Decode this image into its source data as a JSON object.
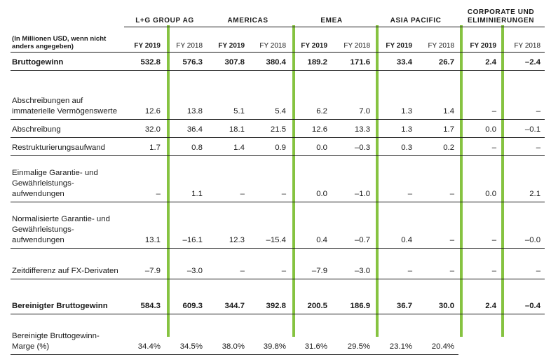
{
  "groups": [
    "L+G GROUP AG",
    "AMERICAS",
    "EMEA",
    "ASIA PACIFIC",
    "CORPORATE UND ELIMINIERUNGEN"
  ],
  "unit_note": "(In Millionen USD, wenn nicht anders angegeben)",
  "years": [
    "FY 2019",
    "FY 2018",
    "FY 2019",
    "FY 2018",
    "FY 2019",
    "FY 2018",
    "FY 2019",
    "FY 2018",
    "FY 2019",
    "FY 2018"
  ],
  "rows": [
    {
      "label": "Bruttogewinn",
      "bold": true,
      "values": [
        "532.8",
        "576.3",
        "307.8",
        "380.4",
        "189.2",
        "171.6",
        "33.4",
        "26.7",
        "2.4",
        "–2.4"
      ]
    },
    {
      "label": "Abschreibungen auf immaterielle Vermögenswerte",
      "values": [
        "12.6",
        "13.8",
        "5.1",
        "5.4",
        "6.2",
        "7.0",
        "1.3",
        "1.4",
        "–",
        "–"
      ]
    },
    {
      "label": "Abschreibung",
      "values": [
        "32.0",
        "36.4",
        "18.1",
        "21.5",
        "12.6",
        "13.3",
        "1.3",
        "1.7",
        "0.0",
        "–0.1"
      ]
    },
    {
      "label": "Restrukturierungsaufwand",
      "values": [
        "1.7",
        "0.8",
        "1.4",
        "0.9",
        "0.0",
        "–0.3",
        "0.3",
        "0.2",
        "–",
        "–"
      ]
    },
    {
      "label": "Einmalige Garantie- und Gewährleistungs-aufwendungen",
      "values": [
        "–",
        "1.1",
        "–",
        "–",
        "0.0",
        "–1.0",
        "–",
        "–",
        "0.0",
        "2.1"
      ]
    },
    {
      "label": "Normalisierte Garantie- und Gewährleistungs-aufwendungen",
      "values": [
        "13.1",
        "–16.1",
        "12.3",
        "–15.4",
        "0.4",
        "–0.7",
        "0.4",
        "–",
        "–",
        "–0.0"
      ]
    },
    {
      "label": "Zeitdifferenz auf FX-Derivaten",
      "values": [
        "–7.9",
        "–3.0",
        "–",
        "–",
        "–7.9",
        "–3.0",
        "–",
        "–",
        "–",
        "–"
      ]
    },
    {
      "label": "Bereinigter Bruttogewinn",
      "bold": true,
      "values": [
        "584.3",
        "609.3",
        "344.7",
        "392.8",
        "200.5",
        "186.9",
        "36.7",
        "30.0",
        "2.4",
        "–0.4"
      ]
    },
    {
      "label": "Bereinigte Bruttogewinn-Marge (%)",
      "values": [
        "34.4%",
        "34.5%",
        "38.0%",
        "39.8%",
        "31.6%",
        "29.5%",
        "23.1%",
        "20.4%",
        "",
        ""
      ]
    }
  ],
  "colors": {
    "accent_bar": "#86c341",
    "text": "#1a1a1a"
  }
}
